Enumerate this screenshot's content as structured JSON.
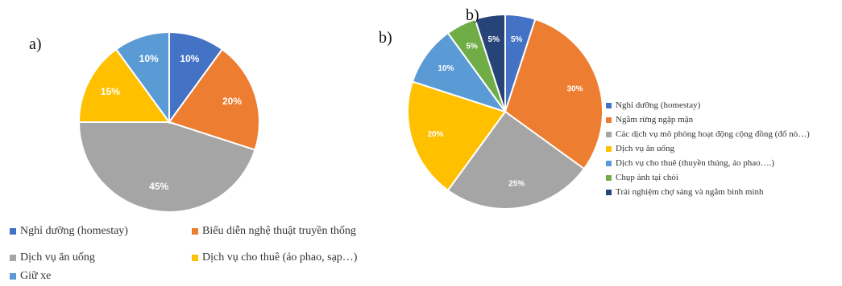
{
  "panel_labels": {
    "a": "a)",
    "b_left": "b)",
    "b_top": "b)"
  },
  "chart_data": [
    {
      "type": "pie",
      "id": "a",
      "categories": [
        "Nghỉ dưỡng (homestay)",
        "Biểu diễn nghệ thuật truyền thống",
        "Dịch vụ ăn uống",
        "Dịch vụ cho thuê (áo phao, sạp…)",
        "Giữ xe"
      ],
      "values": [
        10,
        20,
        45,
        15,
        10
      ],
      "labels": [
        "10%",
        "20%",
        "45%",
        "15%",
        "10%"
      ],
      "colors": [
        "#4472c4",
        "#ed7d31",
        "#a5a5a5",
        "#ffc000",
        "#5b9bd5"
      ],
      "legend": "bottom"
    },
    {
      "type": "pie",
      "id": "b",
      "categories": [
        "Nghỉ dưỡng (homestay)",
        "Ngắm rừng ngập mặn",
        "Các dịch vụ mô phỏng hoạt động cộng đồng (đổ nò…)",
        "Dịch vụ ăn uống",
        "Dịch vụ cho thuê (thuyền thúng, áo phao….)",
        "Chụp ảnh tại chòi",
        "Trải nghiệm chợ sáng và ngắm bình minh"
      ],
      "values": [
        5,
        30,
        25,
        20,
        10,
        5,
        5
      ],
      "labels": [
        "5%",
        "30%",
        "25%",
        "20%",
        "10%",
        "5%",
        "5%"
      ],
      "colors": [
        "#4472c4",
        "#ed7d31",
        "#a5a5a5",
        "#ffc000",
        "#5b9bd5",
        "#70ad47",
        "#264478"
      ],
      "legend": "right"
    }
  ]
}
